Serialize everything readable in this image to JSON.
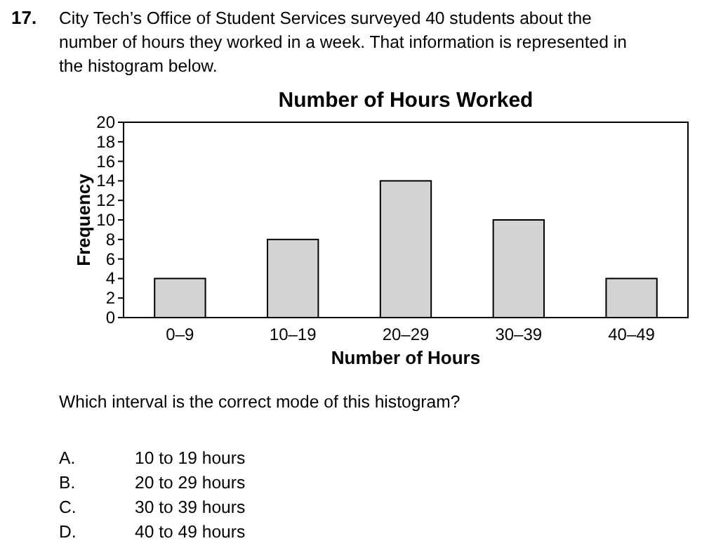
{
  "chart_data": {
    "type": "bar",
    "title": "Number of Hours Worked",
    "xlabel": "Number of Hours",
    "ylabel": "Frequency",
    "categories": [
      "0–9",
      "10–19",
      "20–29",
      "30–39",
      "40–49"
    ],
    "values": [
      4,
      8,
      14,
      10,
      4
    ],
    "color": "#d3d3d3",
    "ylim": [
      0,
      20
    ],
    "yticks": [
      0,
      2,
      4,
      6,
      8,
      10,
      12,
      14,
      16,
      18,
      20
    ],
    "grid": false,
    "annotations": [
      "17.",
      "City Tech’s Office of Student Services surveyed 40 students about the number of hours they worked in a week. That information is represented in the histogram below.",
      "Which interval is the correct mode of this histogram?",
      "A.",
      "10 to 19 hours",
      "B.",
      "20 to 29 hours",
      "C.",
      "30 to 39 hours",
      "D.",
      "40 to 49 hours"
    ]
  }
}
